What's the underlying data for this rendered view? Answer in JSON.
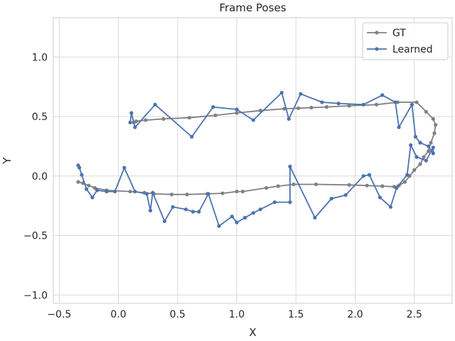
{
  "chart_data": {
    "type": "line",
    "title": "Frame Poses",
    "xlabel": "X",
    "ylabel": "Y",
    "xlim": [
      -0.55,
      2.82
    ],
    "ylim": [
      -1.07,
      1.33
    ],
    "xticks": [
      -0.5,
      0.0,
      0.5,
      1.0,
      1.5,
      2.0,
      2.5
    ],
    "xtick_labels": [
      "−0.5",
      "0.0",
      "0.5",
      "1.0",
      "1.5",
      "2.0",
      "2.5"
    ],
    "yticks": [
      -1.0,
      -0.5,
      0.0,
      0.5,
      1.0
    ],
    "ytick_labels": [
      "−1.0",
      "−0.5",
      "0.0",
      "0.5",
      "1.0"
    ],
    "grid": true,
    "legend_position": "top-right",
    "series": [
      {
        "name": "GT",
        "color": "#808080",
        "x": [
          -0.34,
          -0.3,
          -0.25,
          -0.2,
          -0.1,
          0.1,
          0.22,
          0.3,
          0.45,
          0.58,
          0.75,
          0.88,
          1.0,
          1.05,
          1.25,
          1.35,
          1.48,
          1.67,
          1.95,
          2.1,
          2.23,
          2.33,
          2.37,
          2.42,
          2.46,
          2.5,
          2.55,
          2.58,
          2.62,
          2.64,
          2.67,
          2.68,
          2.66,
          2.6,
          2.52,
          2.36,
          2.18,
          1.95,
          1.76,
          1.63,
          1.52,
          1.4,
          1.2,
          1.0,
          0.82,
          0.6,
          0.38,
          0.23,
          0.15,
          0.13
        ],
        "y": [
          -0.05,
          -0.06,
          -0.08,
          -0.1,
          -0.12,
          -0.13,
          -0.14,
          -0.15,
          -0.155,
          -0.155,
          -0.15,
          -0.145,
          -0.13,
          -0.13,
          -0.1,
          -0.085,
          -0.07,
          -0.07,
          -0.075,
          -0.08,
          -0.085,
          -0.09,
          -0.08,
          -0.05,
          0.0,
          0.05,
          0.1,
          0.16,
          0.21,
          0.28,
          0.36,
          0.43,
          0.48,
          0.54,
          0.62,
          0.62,
          0.6,
          0.59,
          0.58,
          0.575,
          0.57,
          0.565,
          0.55,
          0.53,
          0.51,
          0.49,
          0.48,
          0.47,
          0.46,
          0.45
        ]
      },
      {
        "name": "Learned",
        "color": "#4c72b0",
        "x": [
          0.1,
          0.11,
          0.14,
          0.31,
          0.62,
          0.8,
          1.0,
          1.14,
          1.38,
          1.44,
          1.54,
          1.72,
          1.86,
          2.07,
          2.23,
          2.34,
          2.37,
          2.48,
          2.51,
          2.55,
          2.62,
          2.66,
          2.66,
          2.6,
          2.52,
          2.47,
          2.44,
          2.35,
          2.3,
          2.21,
          2.12,
          2.07,
          1.92,
          1.8,
          1.66,
          1.45,
          1.45,
          1.32,
          1.2,
          1.14,
          1.07,
          1.0,
          0.96,
          0.85,
          0.76,
          0.68,
          0.63,
          0.57,
          0.46,
          0.39,
          0.29,
          0.27,
          0.24,
          0.14,
          0.05,
          -0.03,
          -0.1,
          -0.18,
          -0.22,
          -0.27,
          -0.31,
          -0.33,
          -0.34
        ],
        "y": [
          0.45,
          0.53,
          0.41,
          0.6,
          0.33,
          0.58,
          0.56,
          0.47,
          0.7,
          0.48,
          0.69,
          0.62,
          0.61,
          0.6,
          0.68,
          0.62,
          0.41,
          0.6,
          0.33,
          0.28,
          0.25,
          0.19,
          0.24,
          0.13,
          0.16,
          0.26,
          0.01,
          -0.1,
          -0.26,
          -0.18,
          0.01,
          0.0,
          -0.16,
          -0.19,
          -0.35,
          0.08,
          -0.22,
          -0.22,
          -0.28,
          -0.31,
          -0.35,
          -0.39,
          -0.34,
          -0.42,
          -0.15,
          -0.3,
          -0.3,
          -0.28,
          -0.26,
          -0.38,
          -0.14,
          -0.29,
          -0.15,
          -0.13,
          0.07,
          -0.13,
          -0.13,
          -0.12,
          -0.18,
          -0.11,
          0.01,
          0.07,
          0.09
        ]
      }
    ]
  }
}
